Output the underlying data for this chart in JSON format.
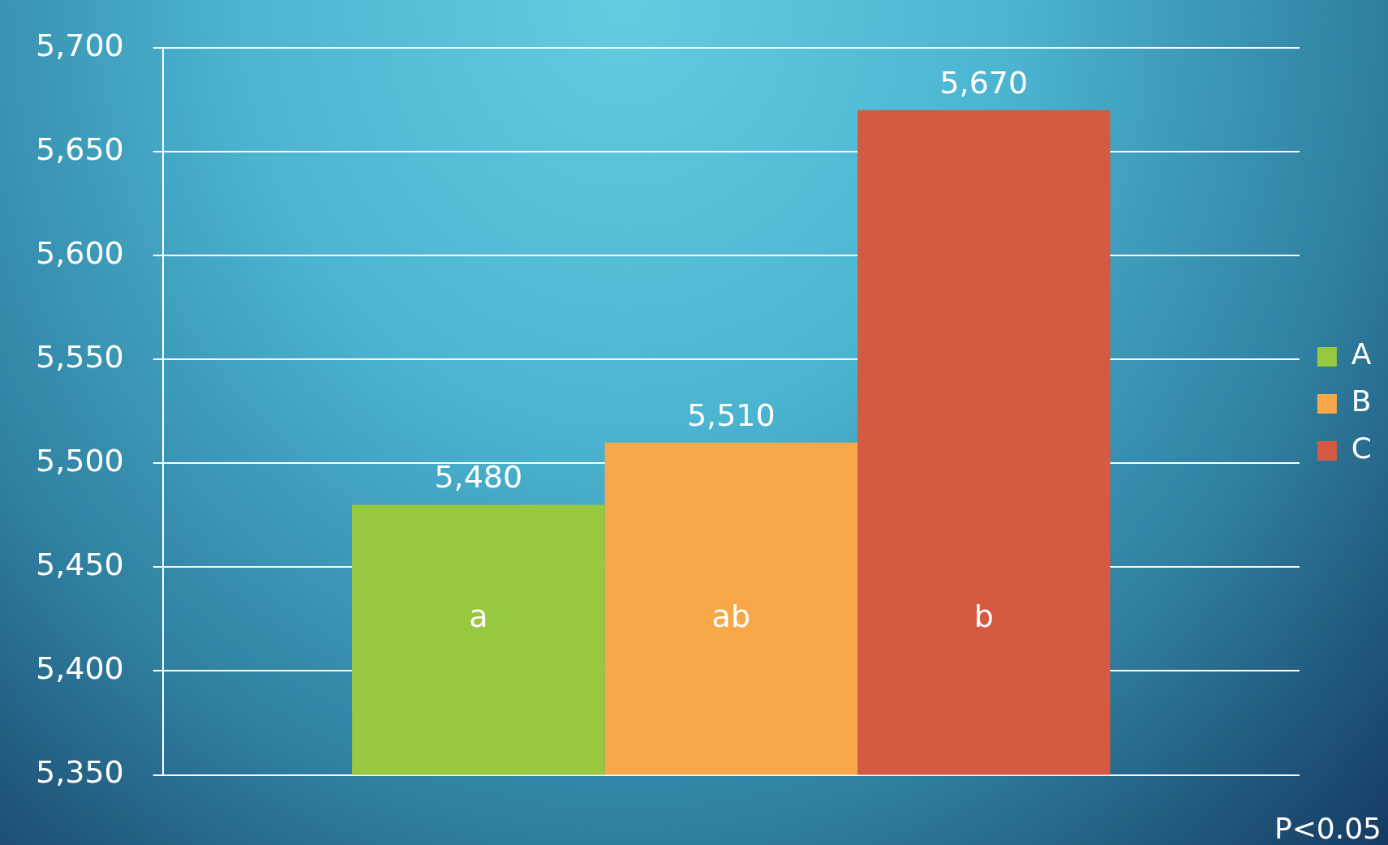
{
  "chart_data": {
    "type": "bar",
    "categories": [
      null
    ],
    "series": [
      {
        "name": "A",
        "color": "#98c840",
        "values": [
          5480
        ]
      },
      {
        "name": "B",
        "color": "#f8a848",
        "values": [
          5510
        ]
      },
      {
        "name": "C",
        "color": "#d45a42",
        "values": [
          5670
        ]
      }
    ],
    "ylim": [
      5350,
      5700
    ],
    "yticks": [
      {
        "value": 5350,
        "label": "5,350"
      },
      {
        "value": 5400,
        "label": "5,400"
      },
      {
        "value": 5450,
        "label": "5,450"
      },
      {
        "value": 5500,
        "label": "5,500"
      },
      {
        "value": 5550,
        "label": "5,550"
      },
      {
        "value": 5600,
        "label": "5,600"
      },
      {
        "value": 5650,
        "label": "5,650"
      },
      {
        "value": 5700,
        "label": "5,700"
      }
    ],
    "value_labels": [
      [
        "5,480"
      ],
      [
        "5,510"
      ],
      [
        "5,670"
      ]
    ],
    "annotations": [
      "a",
      "ab",
      "b",
      "P<0.05"
    ],
    "grid": "y",
    "legend": "right"
  }
}
